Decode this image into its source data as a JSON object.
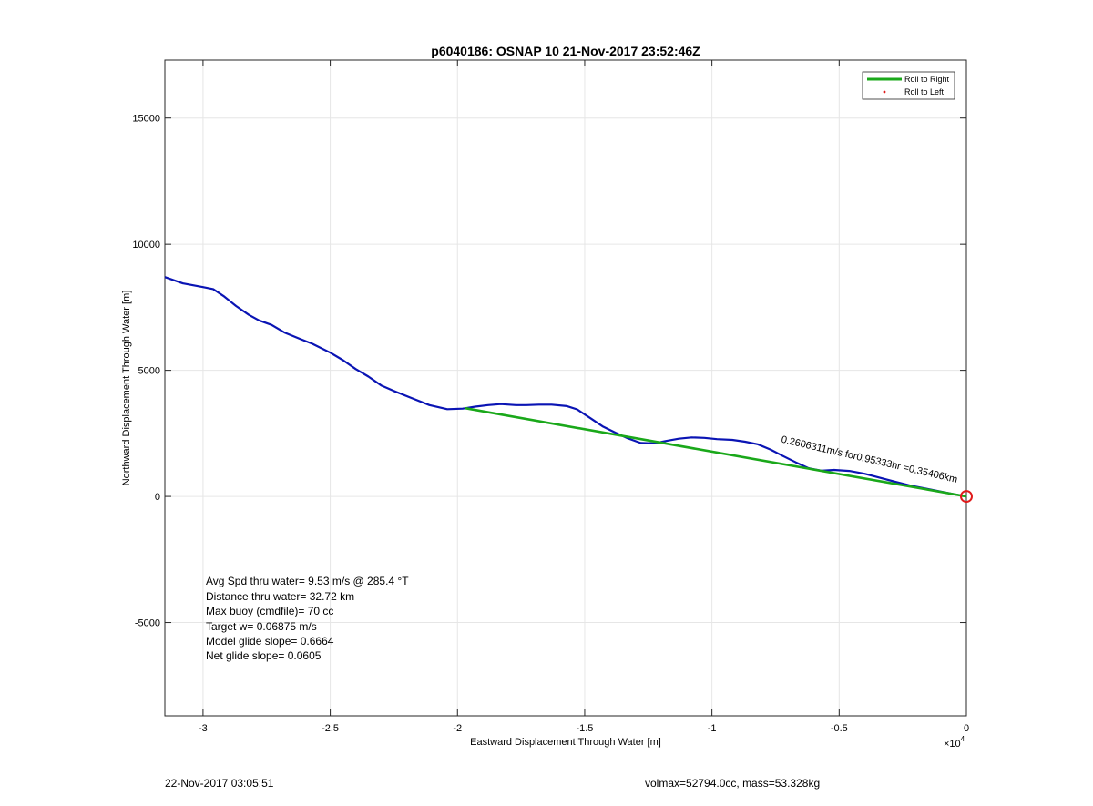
{
  "chart_data": {
    "type": "line",
    "title": "p6040186: OSNAP 10 21-Nov-2017 23:52:46Z",
    "xlabel": "Eastward Displacement Through Water [m]",
    "ylabel": "Northward Displacement Through Water [m]",
    "xlim": [
      -31500,
      0
    ],
    "ylim": [
      -8700,
      17300
    ],
    "x_multiplier_label": "×10",
    "x_multiplier_exp": "4",
    "xticks": [
      -30000,
      -25000,
      -20000,
      -15000,
      -10000,
      -5000,
      0
    ],
    "xtick_labels": [
      "-3",
      "-2.5",
      "-2",
      "-1.5",
      "-1",
      "-0.5",
      "0"
    ],
    "yticks": [
      -5000,
      0,
      5000,
      10000,
      15000
    ],
    "ytick_labels": [
      "-5000",
      "0",
      "5000",
      "10000",
      "15000"
    ],
    "grid": true,
    "legend_position": "top-right",
    "legend": [
      {
        "label": "Roll to Right",
        "color": "#1aa81a",
        "style": "line"
      },
      {
        "label": "Roll to Left",
        "color": "#e01b1b",
        "style": "dot"
      }
    ],
    "series": [
      {
        "color": "#0a14b4",
        "x": [
          -31500,
          -30800,
          -30000,
          -29600,
          -29200,
          -28700,
          -28200,
          -27800,
          -27300,
          -26800,
          -26200,
          -25700,
          -25000,
          -24500,
          -24000,
          -23500,
          -23000,
          -22500,
          -21800,
          -21100,
          -20400,
          -19800,
          -19300,
          -18800,
          -18300,
          -17700,
          -17300,
          -16800,
          -16300,
          -15700,
          -15300,
          -14800,
          -14300,
          -13800,
          -13300,
          -12800,
          -12300,
          -11800,
          -11300,
          -10800,
          -10300,
          -9800,
          -9200,
          -8700,
          -8200,
          -7700,
          -7200,
          -6700,
          -6200,
          -5700,
          -5200,
          -4600,
          -4000,
          -3400,
          -2800,
          -2200,
          -1600,
          -1000,
          -500,
          0
        ],
        "y": [
          8700,
          8450,
          8300,
          8220,
          7950,
          7550,
          7200,
          6980,
          6800,
          6500,
          6250,
          6050,
          5700,
          5400,
          5050,
          4750,
          4400,
          4180,
          3900,
          3620,
          3460,
          3480,
          3560,
          3620,
          3660,
          3620,
          3620,
          3640,
          3640,
          3580,
          3450,
          3120,
          2780,
          2530,
          2300,
          2120,
          2100,
          2200,
          2290,
          2340,
          2320,
          2270,
          2240,
          2170,
          2070,
          1860,
          1600,
          1350,
          1120,
          1020,
          1050,
          1010,
          900,
          740,
          580,
          430,
          310,
          190,
          90,
          0
        ]
      },
      {
        "color": "#1aa81a",
        "x": [
          -19700,
          0
        ],
        "y": [
          3500,
          0
        ]
      }
    ],
    "end_marker": {
      "x": 0,
      "y": 0,
      "color": "#e01b1b"
    },
    "rotated_label": "0.2606311m/s for0.95333hr =0.35406km",
    "annotations": [
      "Avg Spd thru water=  9.53 m/s @ 285.4 °T",
      "Distance thru water= 32.72 km",
      "Max buoy (cmdfile)= 70 cc",
      "Target w= 0.06875 m/s",
      "Model glide slope= 0.6664",
      "Net glide slope= 0.0605"
    ]
  },
  "footer": {
    "left": "22-Nov-2017 03:05:51",
    "right": "volmax=52794.0cc, mass=53.328kg"
  }
}
